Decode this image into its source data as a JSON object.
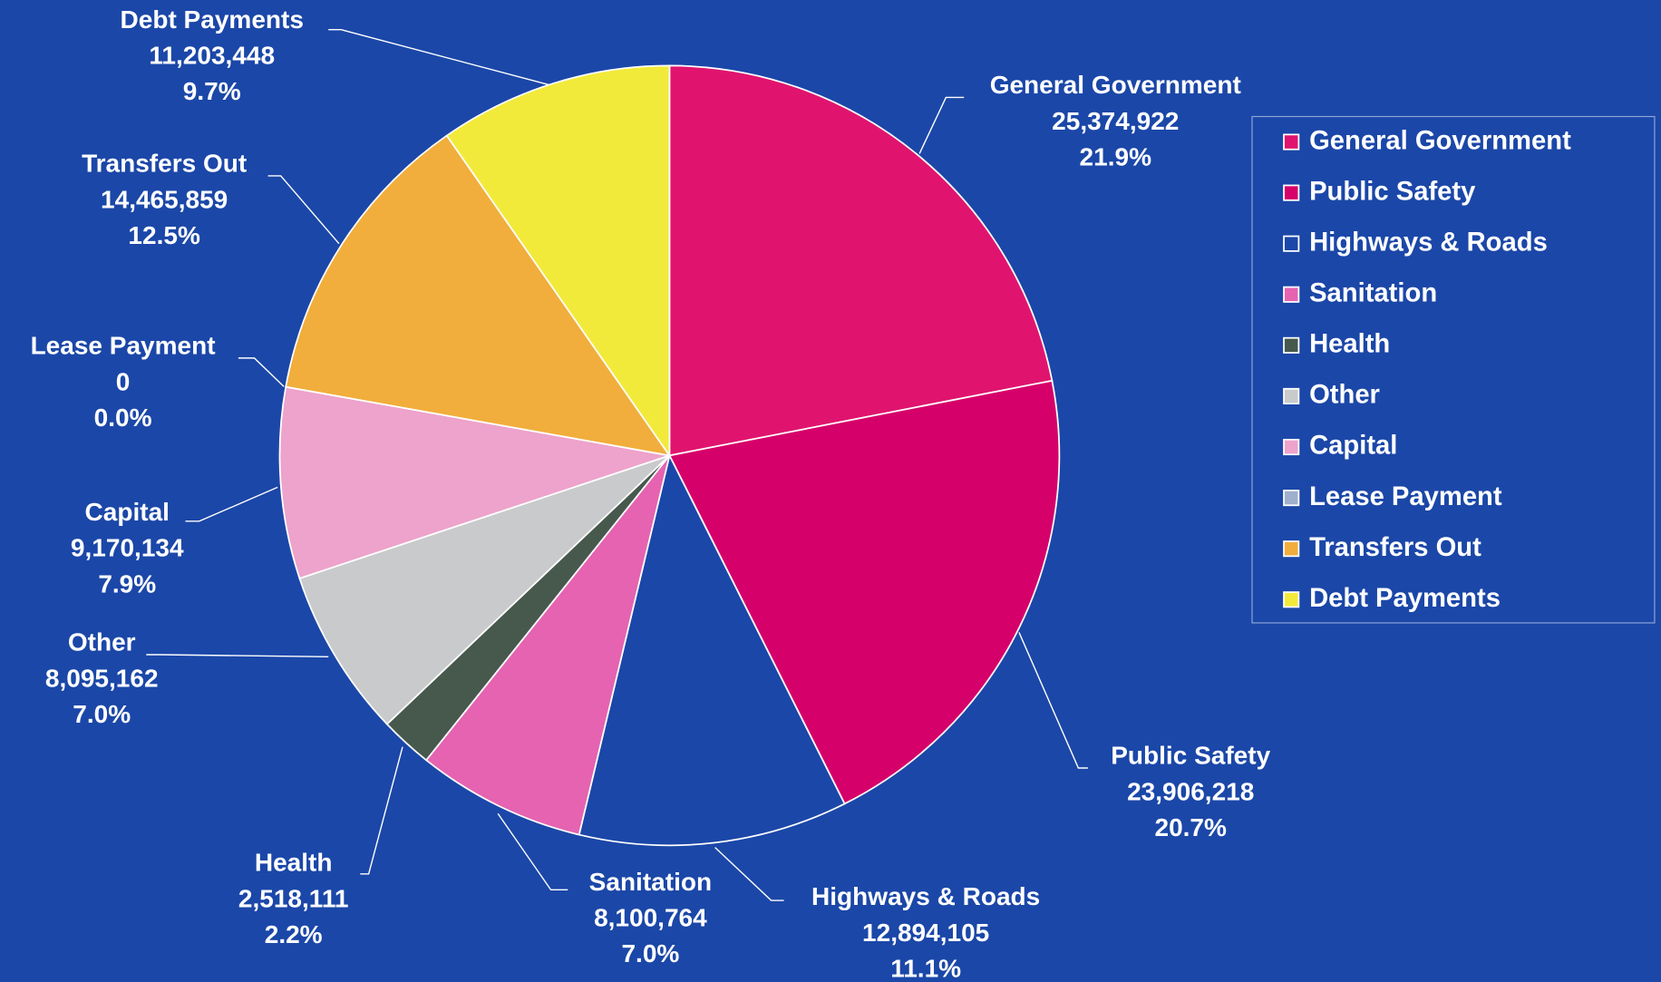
{
  "chart_data": {
    "type": "pie",
    "categories": [
      "General Government",
      "Public Safety",
      "Highways & Roads",
      "Sanitation",
      "Health",
      "Other",
      "Capital",
      "Lease Payment",
      "Transfers Out",
      "Debt Payments"
    ],
    "values": [
      25374922,
      23906218,
      12894105,
      8100764,
      2518111,
      8095162,
      9170134,
      0,
      14465859,
      11203448
    ],
    "value_labels": [
      "25,374,922",
      "23,906,218",
      "12,894,105",
      "8,100,764",
      "2,518,111",
      "8,095,162",
      "9,170,134",
      "0",
      "14,465,859",
      "11,203,448"
    ],
    "percent_labels": [
      "21.9%",
      "20.7%",
      "11.1%",
      "7.0%",
      "2.2%",
      "7.0%",
      "7.9%",
      "0.0%",
      "12.5%",
      "9.7%"
    ],
    "colors": [
      "#e0146e",
      "#d6006a",
      "#1b47a8",
      "#e563b0",
      "#47584d",
      "#c9cacb",
      "#eda3cb",
      "#9fb0cc",
      "#f1ae3c",
      "#f2ea3a"
    ],
    "legend": "right"
  }
}
